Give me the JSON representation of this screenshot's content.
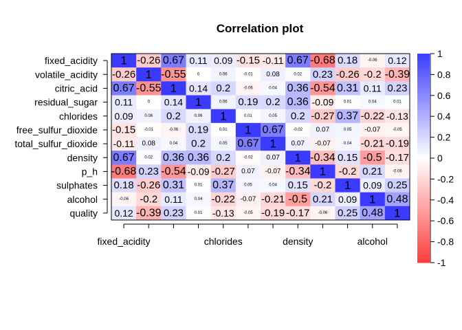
{
  "chart_data": {
    "type": "heatmap",
    "title": "Correlation plot",
    "rows": [
      "fixed_acidity",
      "volatile_acidity",
      "citric_acid",
      "residual_sugar",
      "chlorides",
      "free_sulfur_dioxide",
      "total_sulfur_dioxide",
      "density",
      "p_h",
      "sulphates",
      "alcohol",
      "quality"
    ],
    "columns": [
      "fixed_acidity",
      "volatile_acidity",
      "citric_acid",
      "residual_sugar",
      "chlorides",
      "free_sulfur_dioxide",
      "total_sulfur_dioxide",
      "density",
      "p_h",
      "sulphates",
      "alcohol",
      "quality"
    ],
    "column_labels_shown": [
      "fixed_acidity",
      "chlorides",
      "density",
      "alcohol"
    ],
    "column_label_indices": [
      0,
      4,
      7,
      10
    ],
    "values": [
      [
        1,
        -0.26,
        0.67,
        0.11,
        0.09,
        -0.15,
        -0.11,
        0.67,
        -0.68,
        0.18,
        -0.06,
        0.12
      ],
      [
        -0.26,
        1,
        -0.55,
        0,
        0.06,
        -0.01,
        0.08,
        0.02,
        0.23,
        -0.26,
        -0.2,
        -0.39
      ],
      [
        0.67,
        -0.55,
        1,
        0.14,
        0.2,
        -0.06,
        0.04,
        0.36,
        -0.54,
        0.31,
        0.11,
        0.23
      ],
      [
        0.11,
        0,
        0.14,
        1,
        0.06,
        0.19,
        0.2,
        0.36,
        -0.09,
        0.01,
        0.04,
        0.01
      ],
      [
        0.09,
        0.06,
        0.2,
        0.06,
        1,
        0.01,
        0.05,
        0.2,
        -0.27,
        0.37,
        -0.22,
        -0.13
      ],
      [
        -0.15,
        -0.01,
        -0.06,
        0.19,
        0.01,
        1,
        0.67,
        -0.02,
        0.07,
        0.05,
        -0.07,
        -0.05
      ],
      [
        -0.11,
        0.08,
        0.04,
        0.2,
        0.05,
        0.67,
        1,
        0.07,
        -0.07,
        0.04,
        -0.21,
        -0.19
      ],
      [
        0.67,
        0.02,
        0.36,
        0.36,
        0.2,
        -0.02,
        0.07,
        1,
        -0.34,
        0.15,
        -0.5,
        -0.17
      ],
      [
        -0.68,
        0.23,
        -0.54,
        -0.09,
        -0.27,
        0.07,
        -0.07,
        -0.34,
        1,
        -0.2,
        0.21,
        -0.06
      ],
      [
        0.18,
        -0.26,
        0.31,
        0.01,
        0.37,
        0.05,
        0.04,
        0.15,
        -0.2,
        1,
        0.09,
        0.25
      ],
      [
        -0.06,
        -0.2,
        0.11,
        0.04,
        -0.22,
        -0.07,
        -0.21,
        -0.5,
        0.21,
        0.09,
        1,
        0.48
      ],
      [
        0.12,
        -0.39,
        0.23,
        0.01,
        -0.13,
        -0.05,
        -0.19,
        -0.17,
        -0.06,
        0.25,
        0.48,
        1
      ]
    ],
    "color_scale": {
      "min": -1,
      "max": 1,
      "low_color": "#ff3b3b",
      "mid_color": "#ffffff",
      "high_color": "#3b3bff"
    },
    "legend": {
      "placement": "right",
      "ticks": [
        1,
        0.8,
        0.6,
        0.4,
        0.2,
        0,
        -0.2,
        -0.4,
        -0.6,
        -0.8,
        -1
      ],
      "tick_labels": [
        "1",
        "0.8",
        "0.6",
        "0.4",
        "0.2",
        "0",
        "-0.2",
        "-0.4",
        "-0.6",
        "-0.8",
        "-1"
      ]
    }
  }
}
